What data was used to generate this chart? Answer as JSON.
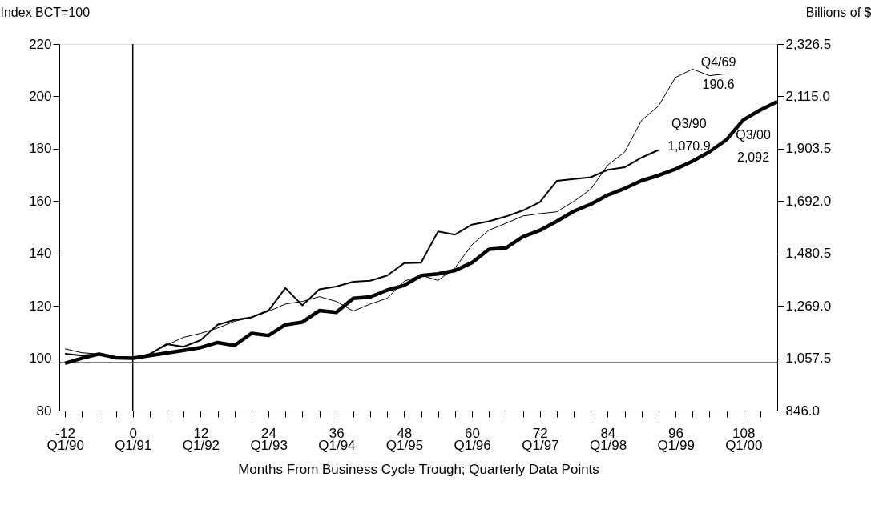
{
  "chart_data": {
    "type": "line",
    "xlabel": "Months From Business Cycle Trough; Quarterly Data Points",
    "ylabel": "Index  BCT=100",
    "y2label": "Billions of $",
    "xlim": [
      -13,
      114
    ],
    "xticks": [
      -12,
      {
        "value": -9,
        "label": null
      },
      {
        "value": -6,
        "label": null
      },
      {
        "value": -3,
        "label": null
      },
      0,
      {
        "value": 3,
        "label": null
      },
      {
        "value": 6,
        "label": null
      },
      {
        "value": 9,
        "label": null
      },
      12,
      {
        "value": 15,
        "label": null
      },
      {
        "value": 18,
        "label": null
      },
      {
        "value": 21,
        "label": null
      },
      24,
      {
        "value": 27,
        "label": null
      },
      {
        "value": 30,
        "label": null
      },
      {
        "value": 33,
        "label": null
      },
      36,
      {
        "value": 39,
        "label": null
      },
      {
        "value": 42,
        "label": null
      },
      {
        "value": 45,
        "label": null
      },
      48,
      {
        "value": 51,
        "label": null
      },
      {
        "value": 54,
        "label": null
      },
      {
        "value": 57,
        "label": null
      },
      60,
      {
        "value": 63,
        "label": null
      },
      {
        "value": 66,
        "label": null
      },
      {
        "value": 69,
        "label": null
      },
      72,
      {
        "value": 75,
        "label": null
      },
      {
        "value": 78,
        "label": null
      },
      {
        "value": 81,
        "label": null
      },
      84,
      {
        "value": 87,
        "label": null
      },
      {
        "value": 90,
        "label": null
      },
      {
        "value": 93,
        "label": null
      },
      96,
      {
        "value": 99,
        "label": null
      },
      {
        "value": 102,
        "label": null
      },
      {
        "value": 105,
        "label": null
      },
      108,
      {
        "value": 111,
        "label": null
      }
    ],
    "x2lim": [
      "1989-12",
      "2000-07"
    ],
    "x2ticks": [
      {
        "value": "1990-01",
        "label": "Q1/90"
      },
      {
        "value": "1991-01",
        "label": "Q1/91"
      },
      {
        "value": "1992-01",
        "label": "Q1/92"
      },
      {
        "value": "1993-01",
        "label": "Q1/93"
      },
      {
        "value": "1994-01",
        "label": "Q1/94"
      },
      {
        "value": "1995-01",
        "label": "Q1/95"
      },
      {
        "value": "1996-01",
        "label": "Q1/96"
      },
      {
        "value": "1997-01",
        "label": "Q1/97"
      },
      {
        "value": "1998-01",
        "label": "Q1/98"
      },
      {
        "value": "1999-01",
        "label": "Q1/99"
      },
      {
        "value": "2000-01",
        "label": "Q1/00"
      }
    ],
    "ylim": [
      80,
      220
    ],
    "yticks": [
      80,
      100,
      120,
      140,
      160,
      180,
      200,
      220
    ],
    "y2lim": [
      846.0,
      2326.5
    ],
    "y2ticks": [
      {
        "value": 846.0,
        "label": "846.0"
      },
      {
        "value": 1057.5,
        "label": "1,057.5"
      },
      {
        "value": 1269.0,
        "label": "1,269.0"
      },
      {
        "value": 1480.5,
        "label": "1,480.5"
      },
      {
        "value": 1692.0,
        "label": "1,692.0"
      },
      {
        "value": 1903.5,
        "label": "1,903.5"
      },
      {
        "value": 2115.0,
        "label": "2,115.0"
      },
      {
        "value": 2326.5,
        "label": "2,326.5"
      }
    ],
    "marker": "none",
    "line_style": "solid",
    "series": [
      {
        "color": "#000000",
        "x": [
          -12,
          -9,
          -6,
          -3,
          0,
          3,
          6,
          9,
          12,
          15,
          18,
          21,
          24,
          27,
          30,
          33,
          36,
          39,
          42,
          45,
          48,
          51,
          54,
          57,
          60,
          63,
          66,
          69,
          72,
          75,
          78,
          81,
          84,
          87,
          90,
          93,
          96,
          99,
          102,
          105
        ],
        "values": [
          103.6,
          102.1,
          101.6,
          100.3,
          100,
          101.8,
          105,
          108,
          109.5,
          111.5,
          114.1,
          115.6,
          117.9,
          120.7,
          121.7,
          123.5,
          121.7,
          118,
          120.7,
          122.9,
          129.4,
          131.7,
          129.7,
          134.5,
          143.3,
          148.9,
          151.5,
          154.3,
          155.2,
          155.9,
          159.9,
          164.5,
          173.7,
          178.7,
          190.8,
          196.3,
          207.2,
          210.4,
          207.9,
          208.6
        ]
      },
      {
        "color": "#000000",
        "x": [
          -12,
          -9,
          -6,
          -3,
          0,
          3,
          6,
          9,
          12,
          15,
          18,
          21,
          24,
          27,
          30,
          33,
          36,
          39,
          42,
          45,
          48,
          51,
          54,
          57,
          60,
          63,
          66,
          69,
          72,
          75,
          78,
          81,
          84,
          87,
          90,
          93
        ],
        "values": [
          101.7,
          101,
          101.6,
          100.3,
          100,
          101.5,
          105.4,
          104.4,
          106.9,
          112.8,
          114.6,
          115.6,
          118.2,
          126.8,
          120.2,
          126.3,
          127.4,
          129.2,
          129.6,
          131.6,
          136.3,
          136.5,
          148.4,
          147.2,
          151,
          152.3,
          154.1,
          156.4,
          159.6,
          167.7,
          168.4,
          169.1,
          171.9,
          172.9,
          176.6,
          179.5
        ]
      },
      {
        "color": "#000000",
        "x": [
          -12,
          -9,
          -6,
          -3,
          0,
          3,
          6,
          9,
          12,
          15,
          18,
          21,
          24,
          27,
          30,
          33,
          36,
          39,
          42,
          45,
          48,
          51,
          54,
          57,
          60,
          63,
          66,
          69,
          72,
          75,
          78,
          81,
          84,
          87,
          90,
          93,
          96,
          99,
          102,
          105,
          108,
          111,
          114
        ],
        "values": [
          98.1,
          100,
          101.6,
          100.2,
          100,
          101,
          102,
          103,
          104.1,
          106,
          104.9,
          109.5,
          108.7,
          112.8,
          113.8,
          118.2,
          117.5,
          122.9,
          123.4,
          126,
          127.8,
          131.6,
          132.2,
          133.5,
          136.5,
          141.6,
          142.1,
          146.4,
          148.8,
          152.3,
          156.1,
          158.8,
          162.3,
          164.8,
          167.8,
          169.8,
          172.2,
          175.2,
          178.8,
          183.4,
          191,
          194.8,
          198
        ]
      }
    ],
    "ref_lines": [
      {
        "axis": "x",
        "value": 0
      },
      {
        "axis": "y",
        "value": 98.3
      }
    ],
    "annotations": [
      {
        "text": "Q4/69\n190.6",
        "x": 105,
        "y": 208.6
      },
      {
        "text": "Q3/90\n1,070.9",
        "x": 93,
        "y": 179.5
      },
      {
        "text": "Q3/00\n2,092",
        "x": 114,
        "y": 198
      }
    ]
  }
}
